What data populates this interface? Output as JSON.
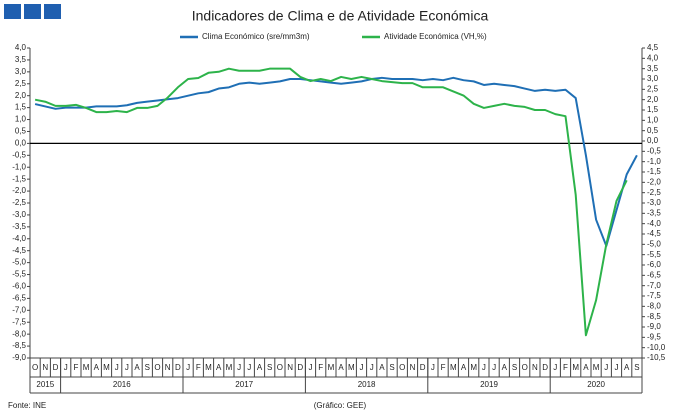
{
  "chart_data": {
    "type": "line",
    "title": "Indicadores de Clima e de Atividade Económica",
    "source": "Fonte: INE",
    "credit": "(Gráfico: GEE)",
    "categories": [
      "O",
      "N",
      "D",
      "J",
      "F",
      "M",
      "A",
      "M",
      "J",
      "J",
      "A",
      "S",
      "O",
      "N",
      "D",
      "J",
      "F",
      "M",
      "A",
      "M",
      "J",
      "J",
      "A",
      "S",
      "O",
      "N",
      "D",
      "J",
      "F",
      "M",
      "A",
      "M",
      "J",
      "J",
      "A",
      "S",
      "O",
      "N",
      "D",
      "J",
      "F",
      "M",
      "A",
      "M",
      "J",
      "J",
      "A",
      "S",
      "O",
      "N",
      "D",
      "J",
      "F",
      "M",
      "A",
      "M",
      "J",
      "J",
      "A",
      "S"
    ],
    "year_groups": [
      {
        "label": "2015",
        "span": 3
      },
      {
        "label": "2016",
        "span": 12
      },
      {
        "label": "2017",
        "span": 12
      },
      {
        "label": "2018",
        "span": 12
      },
      {
        "label": "2019",
        "span": 12
      },
      {
        "label": "2020",
        "span": 9
      }
    ],
    "series": [
      {
        "name": "Clima Económico (sre/mm3m)",
        "color": "#1f6fb5",
        "axis": "y",
        "values": [
          1.65,
          1.55,
          1.45,
          1.5,
          1.5,
          1.5,
          1.55,
          1.55,
          1.55,
          1.6,
          1.7,
          1.75,
          1.8,
          1.85,
          1.9,
          2.0,
          2.1,
          2.15,
          2.3,
          2.35,
          2.5,
          2.55,
          2.5,
          2.55,
          2.6,
          2.7,
          2.7,
          2.65,
          2.6,
          2.55,
          2.5,
          2.55,
          2.6,
          2.7,
          2.75,
          2.7,
          2.7,
          2.7,
          2.65,
          2.7,
          2.65,
          2.75,
          2.65,
          2.6,
          2.45,
          2.5,
          2.45,
          2.4,
          2.3,
          2.2,
          2.25,
          2.2,
          2.25,
          1.9,
          -0.5,
          -3.2,
          -4.3,
          -2.8,
          -1.3,
          -0.5
        ]
      },
      {
        "name": "Atividade Económica (VH,%)",
        "color": "#2db34a",
        "axis": "y2",
        "values": [
          2.0,
          1.9,
          1.7,
          1.7,
          1.75,
          1.6,
          1.4,
          1.4,
          1.45,
          1.4,
          1.6,
          1.6,
          1.7,
          2.1,
          2.6,
          3.0,
          3.05,
          3.3,
          3.35,
          3.5,
          3.4,
          3.4,
          3.4,
          3.5,
          3.5,
          3.5,
          3.1,
          2.9,
          3.0,
          2.9,
          3.1,
          3.0,
          3.1,
          3.0,
          2.9,
          2.85,
          2.8,
          2.8,
          2.6,
          2.6,
          2.6,
          2.4,
          2.2,
          1.8,
          1.6,
          1.7,
          1.8,
          1.7,
          1.65,
          1.5,
          1.5,
          1.3,
          1.2,
          -2.6,
          -9.4,
          -7.7,
          -5.0,
          -2.9,
          -1.9,
          null
        ]
      }
    ],
    "ylim": [
      -9,
      4
    ],
    "yticks": [
      {
        "value": 4,
        "label": "4,0"
      },
      {
        "value": 3.5,
        "label": "3,5"
      },
      {
        "value": 3,
        "label": "3,0"
      },
      {
        "value": 2.5,
        "label": "2,5"
      },
      {
        "value": 2,
        "label": "2,0"
      },
      {
        "value": 1.5,
        "label": "1,5"
      },
      {
        "value": 1,
        "label": "1,0"
      },
      {
        "value": 0.5,
        "label": "0,5"
      },
      {
        "value": 0,
        "label": "0,0"
      },
      {
        "value": -0.5,
        "label": "-0,5"
      },
      {
        "value": -1,
        "label": "-1,0"
      },
      {
        "value": -1.5,
        "label": "-1,5"
      },
      {
        "value": -2,
        "label": "-2,0"
      },
      {
        "value": -2.5,
        "label": "-2,5"
      },
      {
        "value": -3,
        "label": "-3,0"
      },
      {
        "value": -3.5,
        "label": "-3,5"
      },
      {
        "value": -4,
        "label": "-4,0"
      },
      {
        "value": -4.5,
        "label": "-4,5"
      },
      {
        "value": -5,
        "label": "-5,0"
      },
      {
        "value": -5.5,
        "label": "-5,5"
      },
      {
        "value": -6,
        "label": "-6,0"
      },
      {
        "value": -6.5,
        "label": "-6,5"
      },
      {
        "value": -7,
        "label": "-7,0"
      },
      {
        "value": -7.5,
        "label": "-7,5"
      },
      {
        "value": -8,
        "label": "-8,0"
      },
      {
        "value": -8.5,
        "label": "-8,5"
      },
      {
        "value": -9,
        "label": "-9,0"
      }
    ],
    "y2lim": [
      -10.5,
      4.5
    ],
    "y2ticks": [
      {
        "value": 4.5,
        "label": "4,5"
      },
      {
        "value": 4,
        "label": "4,0"
      },
      {
        "value": 3.5,
        "label": "3,5"
      },
      {
        "value": 3,
        "label": "3,0"
      },
      {
        "value": 2.5,
        "label": "2,5"
      },
      {
        "value": 2,
        "label": "2,0"
      },
      {
        "value": 1.5,
        "label": "1,5"
      },
      {
        "value": 1,
        "label": "1,0"
      },
      {
        "value": 0.5,
        "label": "0,5"
      },
      {
        "value": 0,
        "label": "0,0"
      },
      {
        "value": -0.5,
        "label": "-0,5"
      },
      {
        "value": -1,
        "label": "-1,0"
      },
      {
        "value": -1.5,
        "label": "-1,5"
      },
      {
        "value": -2,
        "label": "-2,0"
      },
      {
        "value": -2.5,
        "label": "-2,5"
      },
      {
        "value": -3,
        "label": "-3,0"
      },
      {
        "value": -3.5,
        "label": "-3,5"
      },
      {
        "value": -4,
        "label": "-4,0"
      },
      {
        "value": -4.5,
        "label": "-4,5"
      },
      {
        "value": -5,
        "label": "-5,0"
      },
      {
        "value": -5.5,
        "label": "-5,5"
      },
      {
        "value": -6,
        "label": "-6,0"
      },
      {
        "value": -6.5,
        "label": "-6,5"
      },
      {
        "value": -7,
        "label": "-7,0"
      },
      {
        "value": -7.5,
        "label": "-7,5"
      },
      {
        "value": -8,
        "label": "-8,0"
      },
      {
        "value": -8.5,
        "label": "-8,5"
      },
      {
        "value": -9,
        "label": "-9,0"
      },
      {
        "value": -9.5,
        "label": "-9,5"
      },
      {
        "value": -10,
        "label": "-10,0"
      },
      {
        "value": -10.5,
        "label": "-10,5"
      }
    ]
  }
}
